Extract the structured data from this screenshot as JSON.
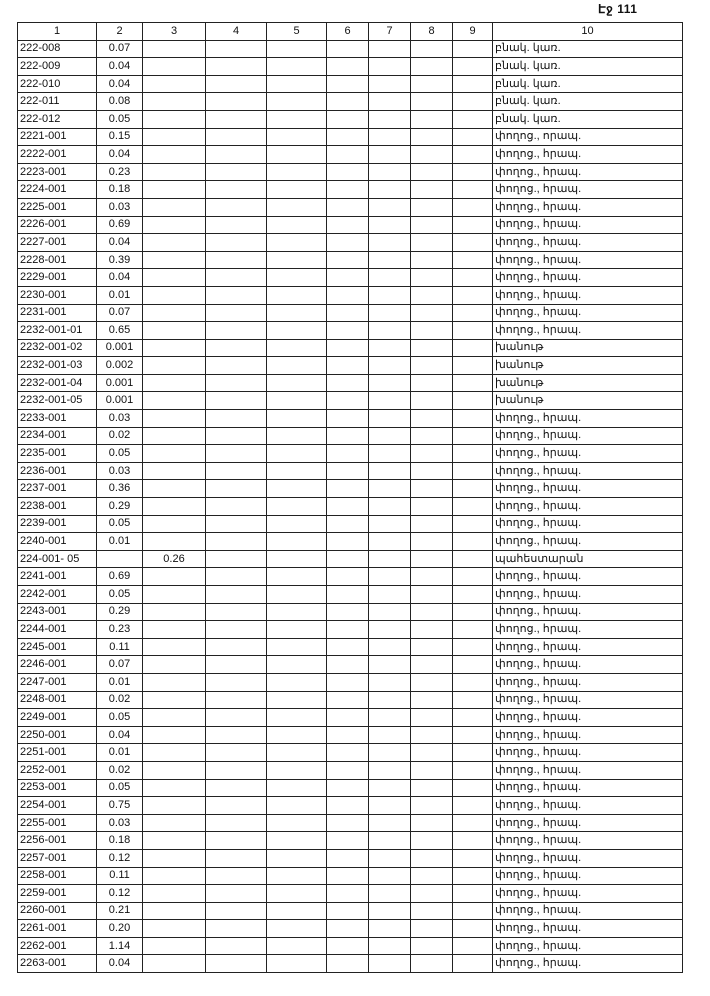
{
  "page_number": "Էջ 111",
  "columns": [
    "1",
    "2",
    "3",
    "4",
    "5",
    "6",
    "7",
    "8",
    "9",
    "10"
  ],
  "rows": [
    [
      "222-008",
      "0.07",
      "",
      "",
      "",
      "",
      "",
      "",
      "",
      "բնակ. կառ."
    ],
    [
      "222-009",
      "0.04",
      "",
      "",
      "",
      "",
      "",
      "",
      "",
      "բնակ. կառ."
    ],
    [
      "222-010",
      "0.04",
      "",
      "",
      "",
      "",
      "",
      "",
      "",
      "բնակ. կառ."
    ],
    [
      "222-011",
      "0.08",
      "",
      "",
      "",
      "",
      "",
      "",
      "",
      "բնակ. կառ."
    ],
    [
      "222-012",
      "0.05",
      "",
      "",
      "",
      "",
      "",
      "",
      "",
      "բնակ. կառ."
    ],
    [
      "2221-001",
      "0.15",
      "",
      "",
      "",
      "",
      "",
      "",
      "",
      "փողոց., որապ."
    ],
    [
      "2222-001",
      "0.04",
      "",
      "",
      "",
      "",
      "",
      "",
      "",
      "փողոց., հրապ."
    ],
    [
      "2223-001",
      "0.23",
      "",
      "",
      "",
      "",
      "",
      "",
      "",
      "փողոց., հրապ."
    ],
    [
      "2224-001",
      "0.18",
      "",
      "",
      "",
      "",
      "",
      "",
      "",
      "փողոց., հրապ."
    ],
    [
      "2225-001",
      "0.03",
      "",
      "",
      "",
      "",
      "",
      "",
      "",
      "փողոց., հրապ."
    ],
    [
      "2226-001",
      "0.69",
      "",
      "",
      "",
      "",
      "",
      "",
      "",
      "փողոց., հրապ."
    ],
    [
      "2227-001",
      "0.04",
      "",
      "",
      "",
      "",
      "",
      "",
      "",
      "փողոց., հրապ."
    ],
    [
      "2228-001",
      "0.39",
      "",
      "",
      "",
      "",
      "",
      "",
      "",
      "փողոց., հրապ."
    ],
    [
      "2229-001",
      "0.04",
      "",
      "",
      "",
      "",
      "",
      "",
      "",
      "փողոց., հրապ."
    ],
    [
      "2230-001",
      "0.01",
      "",
      "",
      "",
      "",
      "",
      "",
      "",
      "փողոց., հրապ."
    ],
    [
      "2231-001",
      "0.07",
      "",
      "",
      "",
      "",
      "",
      "",
      "",
      "փողոց., հրապ."
    ],
    [
      "2232-001-01",
      "0.65",
      "",
      "",
      "",
      "",
      "",
      "",
      "",
      "փողոց., հրապ."
    ],
    [
      "2232-001-02",
      "0.001",
      "",
      "",
      "",
      "",
      "",
      "",
      "",
      "խանութ"
    ],
    [
      "2232-001-03",
      "0.002",
      "",
      "",
      "",
      "",
      "",
      "",
      "",
      "խանութ"
    ],
    [
      "2232-001-04",
      "0.001",
      "",
      "",
      "",
      "",
      "",
      "",
      "",
      "խանութ"
    ],
    [
      "2232-001-05",
      "0.001",
      "",
      "",
      "",
      "",
      "",
      "",
      "",
      "խանութ"
    ],
    [
      "2233-001",
      "0.03",
      "",
      "",
      "",
      "",
      "",
      "",
      "",
      "փողոց., հրապ."
    ],
    [
      "2234-001",
      "0.02",
      "",
      "",
      "",
      "",
      "",
      "",
      "",
      "փողոց., հրապ."
    ],
    [
      "2235-001",
      "0.05",
      "",
      "",
      "",
      "",
      "",
      "",
      "",
      "փողոց., հրապ."
    ],
    [
      "2236-001",
      "0.03",
      "",
      "",
      "",
      "",
      "",
      "",
      "",
      "փողոց., հրապ."
    ],
    [
      "2237-001",
      "0.36",
      "",
      "",
      "",
      "",
      "",
      "",
      "",
      "փողոց., հրապ."
    ],
    [
      "2238-001",
      "0.29",
      "",
      "",
      "",
      "",
      "",
      "",
      "",
      "փողոց., հրապ."
    ],
    [
      "2239-001",
      "0.05",
      "",
      "",
      "",
      "",
      "",
      "",
      "",
      "փողոց., հրապ."
    ],
    [
      "2240-001",
      "0.01",
      "",
      "",
      "",
      "",
      "",
      "",
      "",
      "փողոց., հրապ."
    ],
    [
      "224-001- 05",
      "",
      "0.26",
      "",
      "",
      "",
      "",
      "",
      "",
      "պահեստարան"
    ],
    [
      "2241-001",
      "0.69",
      "",
      "",
      "",
      "",
      "",
      "",
      "",
      "փողոց., հրապ."
    ],
    [
      "2242-001",
      "0.05",
      "",
      "",
      "",
      "",
      "",
      "",
      "",
      "փողոց., հրապ."
    ],
    [
      "2243-001",
      "0.29",
      "",
      "",
      "",
      "",
      "",
      "",
      "",
      "փողոց., հրապ."
    ],
    [
      "2244-001",
      "0.23",
      "",
      "",
      "",
      "",
      "",
      "",
      "",
      "փողոց., հրապ."
    ],
    [
      "2245-001",
      "0.11",
      "",
      "",
      "",
      "",
      "",
      "",
      "",
      "փողոց., հրապ."
    ],
    [
      "2246-001",
      "0.07",
      "",
      "",
      "",
      "",
      "",
      "",
      "",
      "փողոց., հրապ."
    ],
    [
      "2247-001",
      "0.01",
      "",
      "",
      "",
      "",
      "",
      "",
      "",
      "փողոց., հրապ."
    ],
    [
      "2248-001",
      "0.02",
      "",
      "",
      "",
      "",
      "",
      "",
      "",
      "փողոց., հրապ."
    ],
    [
      "2249-001",
      "0.05",
      "",
      "",
      "",
      "",
      "",
      "",
      "",
      "փողոց., հրապ."
    ],
    [
      "2250-001",
      "0.04",
      "",
      "",
      "",
      "",
      "",
      "",
      "",
      "փողոց., հրապ."
    ],
    [
      "2251-001",
      "0.01",
      "",
      "",
      "",
      "",
      "",
      "",
      "",
      "փողոց., հրապ."
    ],
    [
      "2252-001",
      "0.02",
      "",
      "",
      "",
      "",
      "",
      "",
      "",
      "փողոց., հրապ."
    ],
    [
      "2253-001",
      "0.05",
      "",
      "",
      "",
      "",
      "",
      "",
      "",
      "փողոց., հրապ."
    ],
    [
      "2254-001",
      "0.75",
      "",
      "",
      "",
      "",
      "",
      "",
      "",
      "փողոց., հրապ."
    ],
    [
      "2255-001",
      "0.03",
      "",
      "",
      "",
      "",
      "",
      "",
      "",
      "փողոց., հրապ."
    ],
    [
      "2256-001",
      "0.18",
      "",
      "",
      "",
      "",
      "",
      "",
      "",
      "փողոց., հրապ."
    ],
    [
      "2257-001",
      "0.12",
      "",
      "",
      "",
      "",
      "",
      "",
      "",
      "փողոց., հրապ."
    ],
    [
      "2258-001",
      "0.11",
      "",
      "",
      "",
      "",
      "",
      "",
      "",
      "փողոց., հրապ."
    ],
    [
      "2259-001",
      "0.12",
      "",
      "",
      "",
      "",
      "",
      "",
      "",
      "փողոց., հրապ."
    ],
    [
      "2260-001",
      "0.21",
      "",
      "",
      "",
      "",
      "",
      "",
      "",
      "փողոց., հրապ."
    ],
    [
      "2261-001",
      "0.20",
      "",
      "",
      "",
      "",
      "",
      "",
      "",
      "փողոց., հրապ."
    ],
    [
      "2262-001",
      "1.14",
      "",
      "",
      "",
      "",
      "",
      "",
      "",
      "փողոց., հրապ."
    ],
    [
      "2263-001",
      "0.04",
      "",
      "",
      "",
      "",
      "",
      "",
      "",
      "փողոց., հրապ."
    ]
  ]
}
